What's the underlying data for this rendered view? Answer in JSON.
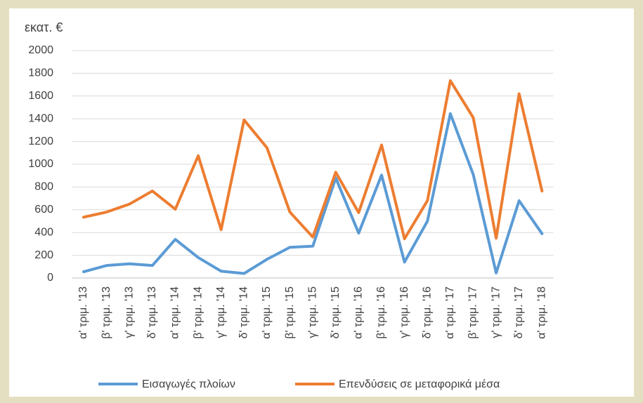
{
  "chart_data": {
    "type": "line",
    "y_label": "εκατ. €",
    "categories": [
      "α' τριμ. '13",
      "β' τριμ. '13",
      "γ' τριμ. '13",
      "δ' τριμ. '13",
      "α' τριμ. '14",
      "β' τριμ. '14",
      "γ' τριμ. '14",
      "δ' τριμ. '14",
      "α' τριμ. '15",
      "β' τριμ. '15",
      "γ' τριμ. '15",
      "δ' τριμ. '15",
      "α' τριμ. '16",
      "β' τριμ. '16",
      "γ' τριμ. '16",
      "δ' τριμ. '16",
      "α' τριμ. '17",
      "β' τριμ. '17",
      "γ' τριμ. '17",
      "δ' τριμ. '17",
      "α' τριμ. '18"
    ],
    "series": [
      {
        "name": "Εισαγωγές πλοίων",
        "color": "#5b9bd5",
        "values": [
          55,
          110,
          125,
          110,
          340,
          180,
          60,
          40,
          165,
          270,
          280,
          880,
          395,
          905,
          140,
          500,
          1445,
          910,
          45,
          680,
          390
        ]
      },
      {
        "name": "Επενδύσεις σε μεταφορικά μέσα",
        "color": "#ed7d31",
        "values": [
          535,
          580,
          650,
          765,
          605,
          1075,
          425,
          1390,
          1145,
          580,
          360,
          930,
          575,
          1170,
          345,
          680,
          1735,
          1410,
          350,
          1620,
          765
        ]
      }
    ],
    "ylim": [
      0,
      2000
    ],
    "yticks": [
      0,
      200,
      400,
      600,
      800,
      1000,
      1200,
      1400,
      1600,
      1800,
      2000
    ],
    "grid": true,
    "legend": "bottom"
  }
}
